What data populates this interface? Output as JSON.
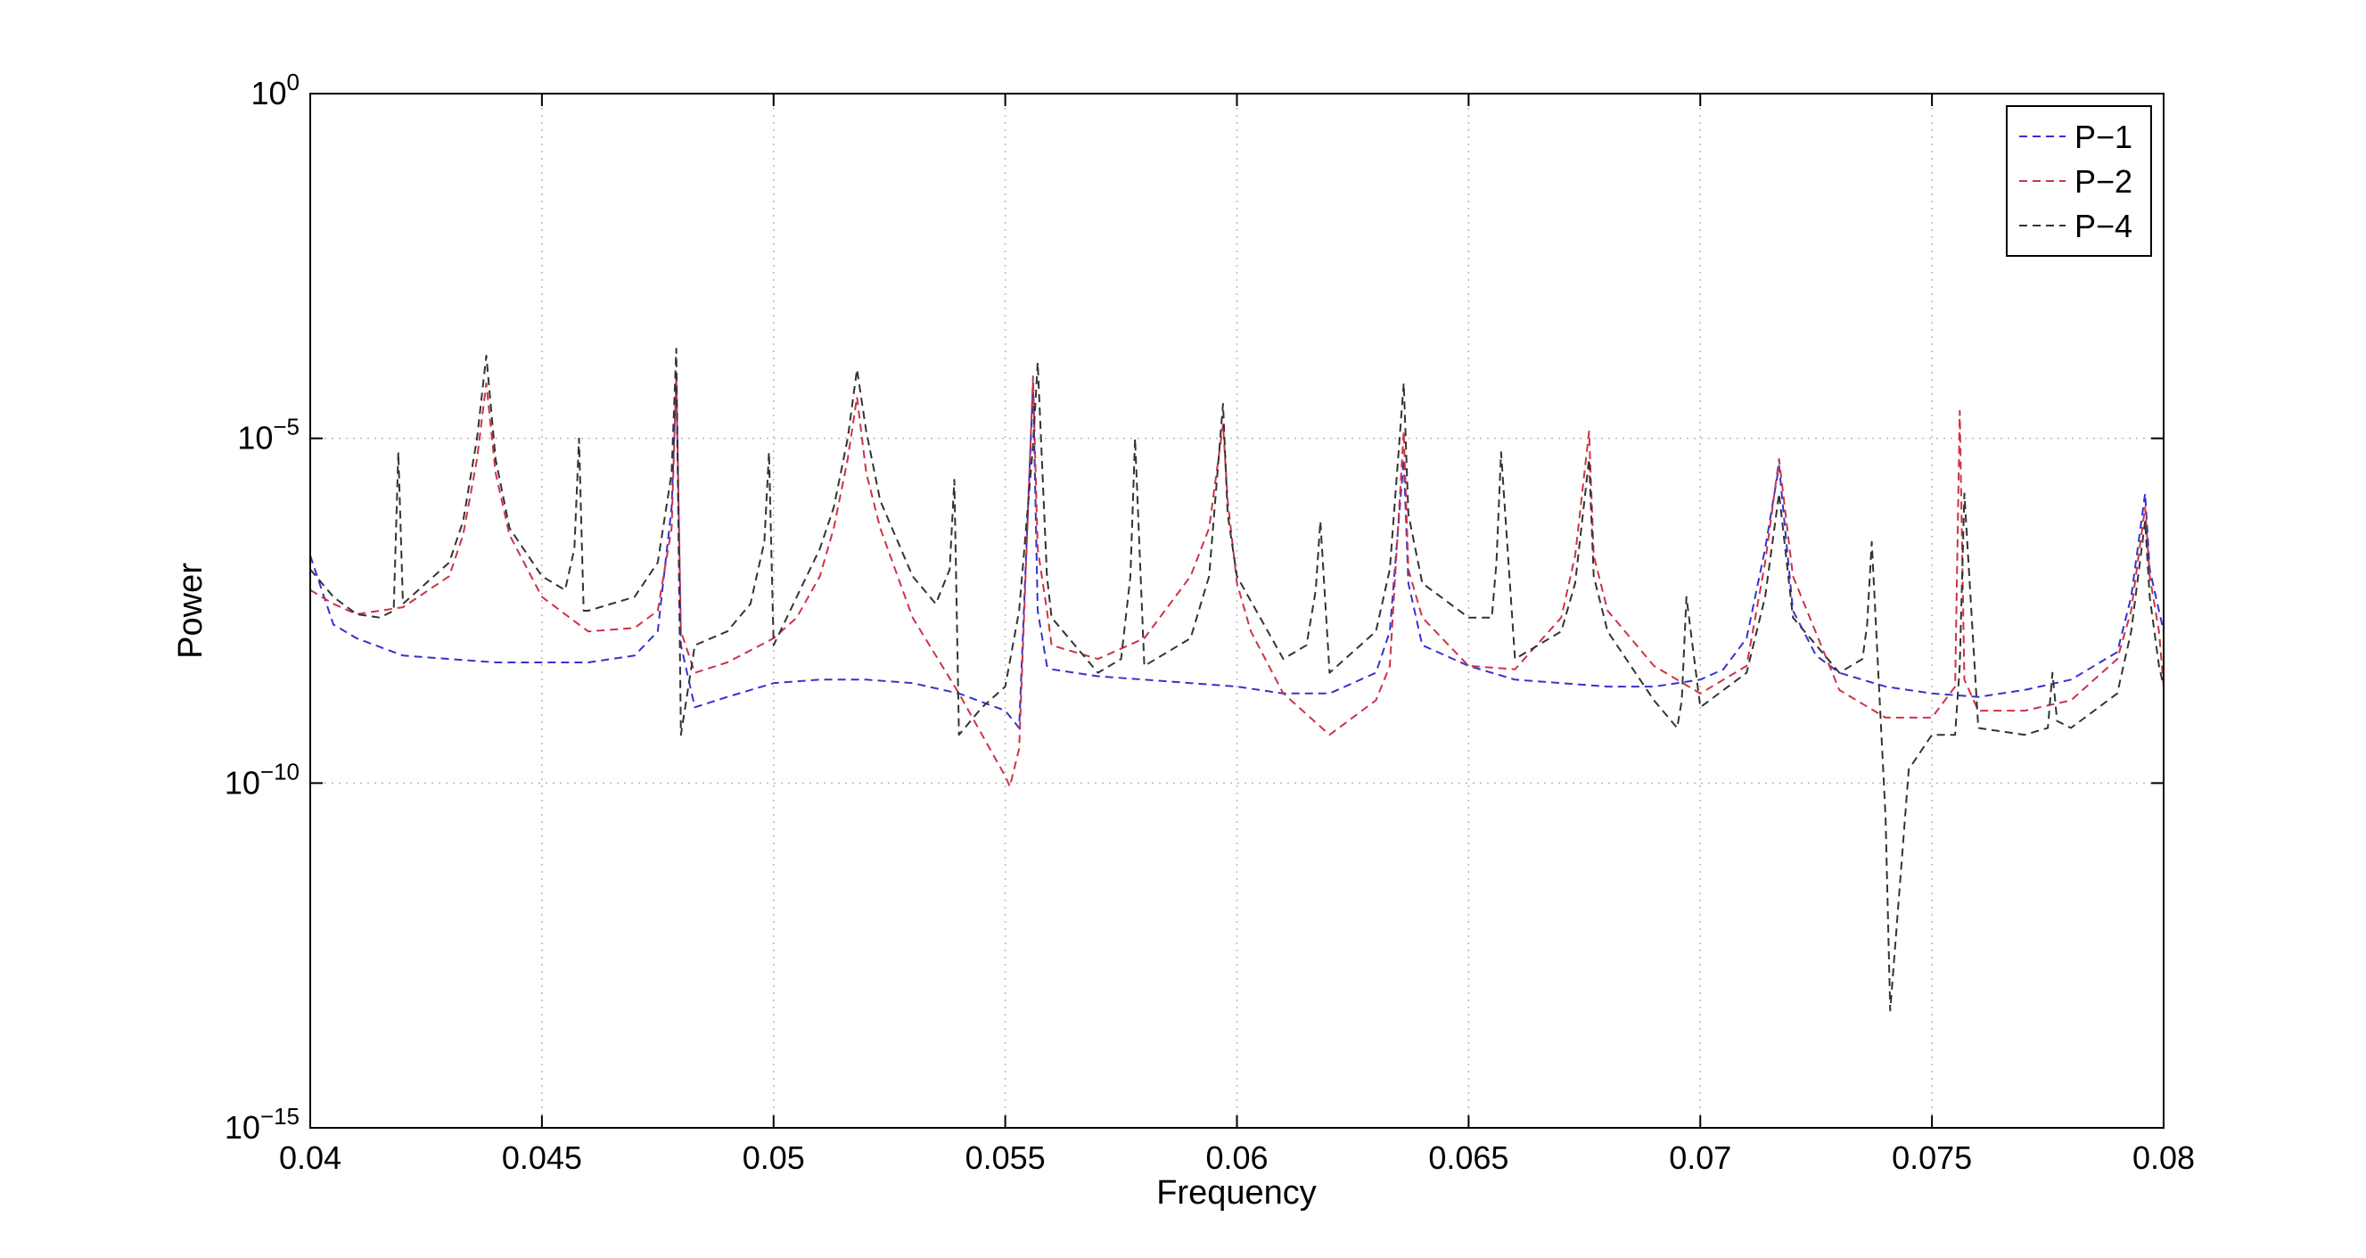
{
  "chart_data": {
    "type": "line",
    "title": "",
    "xlabel": "Frequency",
    "ylabel": "Power",
    "xlim": [
      0.04,
      0.08
    ],
    "ylim": [
      1e-15,
      1
    ],
    "yscale": "log",
    "grid": true,
    "legend_position": "top-right",
    "x_ticks": [
      {
        "value": 0.04,
        "label": "0.04"
      },
      {
        "value": 0.045,
        "label": "0.045"
      },
      {
        "value": 0.05,
        "label": "0.05"
      },
      {
        "value": 0.055,
        "label": "0.055"
      },
      {
        "value": 0.06,
        "label": "0.06"
      },
      {
        "value": 0.065,
        "label": "0.065"
      },
      {
        "value": 0.07,
        "label": "0.07"
      },
      {
        "value": 0.075,
        "label": "0.075"
      },
      {
        "value": 0.08,
        "label": "0.08"
      }
    ],
    "y_ticks": [
      {
        "exp": 0,
        "base": "10",
        "sup": "0"
      },
      {
        "exp": -5,
        "base": "10",
        "sup": "−5"
      },
      {
        "exp": -10,
        "base": "10",
        "sup": "−10"
      },
      {
        "exp": -15,
        "base": "10",
        "sup": "−15"
      }
    ],
    "series": [
      {
        "name": "P−1",
        "color": "#3333cc",
        "x": [
          0.04,
          0.0405,
          0.041,
          0.042,
          0.043,
          0.044,
          0.045,
          0.046,
          0.047,
          0.0475,
          0.0478,
          0.0479,
          0.048,
          0.0483,
          0.049,
          0.05,
          0.051,
          0.052,
          0.053,
          0.054,
          0.055,
          0.0553,
          0.0556,
          0.0557,
          0.0559,
          0.056,
          0.057,
          0.058,
          0.059,
          0.06,
          0.061,
          0.062,
          0.063,
          0.0633,
          0.0636,
          0.0637,
          0.064,
          0.065,
          0.066,
          0.067,
          0.068,
          0.069,
          0.07,
          0.0705,
          0.071,
          0.0714,
          0.0717,
          0.072,
          0.0725,
          0.073,
          0.074,
          0.075,
          0.076,
          0.077,
          0.078,
          0.079,
          0.0793,
          0.0796,
          0.0797,
          0.0799,
          0.08
        ],
        "y": [
          -6.7,
          -7.7,
          -7.9,
          -8.15,
          -8.2,
          -8.25,
          -8.25,
          -8.25,
          -8.15,
          -7.8,
          -6.0,
          -4.1,
          -8.0,
          -8.9,
          -8.75,
          -8.55,
          -8.5,
          -8.5,
          -8.55,
          -8.7,
          -8.95,
          -9.2,
          -4.2,
          -7.5,
          -8.3,
          -8.35,
          -8.45,
          -8.5,
          -8.55,
          -8.6,
          -8.7,
          -8.7,
          -8.4,
          -7.8,
          -5.3,
          -7.1,
          -8.0,
          -8.3,
          -8.5,
          -8.55,
          -8.6,
          -8.6,
          -8.5,
          -8.35,
          -7.9,
          -6.6,
          -5.4,
          -7.5,
          -8.15,
          -8.4,
          -8.6,
          -8.7,
          -8.75,
          -8.65,
          -8.5,
          -8.1,
          -7.3,
          -5.8,
          -6.9,
          -7.5,
          -7.8
        ]
      },
      {
        "name": "P−2",
        "color": "#cc3344",
        "x": [
          0.04,
          0.0405,
          0.041,
          0.042,
          0.043,
          0.0433,
          0.0436,
          0.0438,
          0.044,
          0.0443,
          0.045,
          0.046,
          0.047,
          0.0475,
          0.0478,
          0.0479,
          0.048,
          0.0483,
          0.049,
          0.05,
          0.0505,
          0.051,
          0.0513,
          0.0516,
          0.0518,
          0.052,
          0.0523,
          0.053,
          0.054,
          0.0545,
          0.055,
          0.0551,
          0.0553,
          0.0556,
          0.0557,
          0.0559,
          0.056,
          0.057,
          0.058,
          0.059,
          0.0594,
          0.0597,
          0.0598,
          0.06,
          0.0603,
          0.061,
          0.062,
          0.063,
          0.0633,
          0.0636,
          0.0637,
          0.064,
          0.065,
          0.066,
          0.067,
          0.0673,
          0.0676,
          0.0677,
          0.068,
          0.069,
          0.07,
          0.071,
          0.0714,
          0.0717,
          0.072,
          0.073,
          0.074,
          0.075,
          0.0755,
          0.0756,
          0.0757,
          0.076,
          0.077,
          0.078,
          0.079,
          0.0793,
          0.0796,
          0.0797,
          0.0799,
          0.08
        ],
        "y": [
          -7.2,
          -7.4,
          -7.55,
          -7.45,
          -7.0,
          -6.4,
          -5.3,
          -4.2,
          -5.5,
          -6.4,
          -7.3,
          -7.8,
          -7.75,
          -7.5,
          -6.3,
          -4.1,
          -7.8,
          -8.4,
          -8.25,
          -7.9,
          -7.6,
          -7.0,
          -6.3,
          -5.3,
          -4.4,
          -5.5,
          -6.3,
          -7.6,
          -8.7,
          -9.3,
          -9.9,
          -10.05,
          -9.5,
          -4.1,
          -6.6,
          -7.5,
          -8.0,
          -8.2,
          -7.9,
          -7.0,
          -6.3,
          -4.8,
          -5.9,
          -7.1,
          -7.8,
          -8.7,
          -9.3,
          -8.8,
          -8.3,
          -4.9,
          -6.9,
          -7.6,
          -8.3,
          -8.35,
          -7.6,
          -6.7,
          -4.9,
          -6.7,
          -7.5,
          -8.3,
          -8.7,
          -8.3,
          -6.8,
          -5.3,
          -7.0,
          -8.65,
          -9.05,
          -9.05,
          -8.6,
          -4.6,
          -8.5,
          -8.95,
          -8.95,
          -8.8,
          -8.2,
          -7.5,
          -6.0,
          -7.0,
          -7.8,
          -8.6
        ]
      },
      {
        "name": "P−4",
        "color": "#333333",
        "x": [
          0.04,
          0.0405,
          0.041,
          0.0415,
          0.0418,
          0.0419,
          0.042,
          0.043,
          0.0433,
          0.0436,
          0.0438,
          0.044,
          0.0443,
          0.045,
          0.0455,
          0.0457,
          0.0458,
          0.0459,
          0.046,
          0.047,
          0.0475,
          0.0478,
          0.0479,
          0.048,
          0.0483,
          0.049,
          0.0495,
          0.0498,
          0.0499,
          0.05,
          0.0505,
          0.051,
          0.0513,
          0.0516,
          0.0518,
          0.052,
          0.0523,
          0.053,
          0.0535,
          0.0538,
          0.0539,
          0.054,
          0.0545,
          0.055,
          0.0553,
          0.0556,
          0.0557,
          0.0559,
          0.056,
          0.057,
          0.0575,
          0.0577,
          0.0578,
          0.058,
          0.059,
          0.0594,
          0.0597,
          0.0598,
          0.06,
          0.061,
          0.0615,
          0.0617,
          0.0618,
          0.062,
          0.063,
          0.0633,
          0.0636,
          0.0637,
          0.064,
          0.065,
          0.0655,
          0.0656,
          0.0657,
          0.066,
          0.067,
          0.0673,
          0.0676,
          0.0677,
          0.068,
          0.069,
          0.0695,
          0.0696,
          0.0697,
          0.07,
          0.071,
          0.0714,
          0.0717,
          0.072,
          0.073,
          0.0735,
          0.0736,
          0.0737,
          0.074,
          0.0741,
          0.0745,
          0.075,
          0.0755,
          0.0756,
          0.0757,
          0.076,
          0.077,
          0.0775,
          0.0776,
          0.0777,
          0.078,
          0.079,
          0.0793,
          0.0796,
          0.0797,
          0.0799,
          0.08
        ],
        "y": [
          -6.9,
          -7.3,
          -7.55,
          -7.6,
          -7.5,
          -5.2,
          -7.4,
          -6.8,
          -6.2,
          -5.0,
          -3.8,
          -5.3,
          -6.3,
          -7.0,
          -7.2,
          -6.6,
          -5.0,
          -7.5,
          -7.5,
          -7.3,
          -6.8,
          -5.5,
          -3.7,
          -9.3,
          -8.0,
          -7.8,
          -7.4,
          -6.5,
          -5.2,
          -8.0,
          -7.3,
          -6.6,
          -6.0,
          -5.0,
          -4.0,
          -4.9,
          -5.9,
          -7.0,
          -7.4,
          -6.9,
          -5.6,
          -9.3,
          -8.9,
          -8.6,
          -7.5,
          -5.1,
          -3.9,
          -7.0,
          -7.6,
          -8.4,
          -8.2,
          -7.0,
          -5.0,
          -8.3,
          -7.9,
          -7.0,
          -4.5,
          -6.1,
          -7.0,
          -8.2,
          -8.0,
          -7.2,
          -6.2,
          -8.4,
          -7.8,
          -6.9,
          -4.2,
          -6.1,
          -7.1,
          -7.6,
          -7.6,
          -6.8,
          -5.2,
          -8.2,
          -7.8,
          -7.1,
          -5.3,
          -7.0,
          -7.8,
          -8.8,
          -9.2,
          -8.8,
          -7.3,
          -8.9,
          -8.4,
          -7.3,
          -5.8,
          -7.6,
          -8.4,
          -8.2,
          -7.7,
          -6.5,
          -10.5,
          -13.3,
          -9.8,
          -9.3,
          -9.3,
          -8.3,
          -5.8,
          -9.2,
          -9.3,
          -9.2,
          -8.4,
          -9.1,
          -9.2,
          -8.7,
          -7.8,
          -6.2,
          -7.3,
          -8.3,
          -8.6
        ]
      }
    ]
  }
}
